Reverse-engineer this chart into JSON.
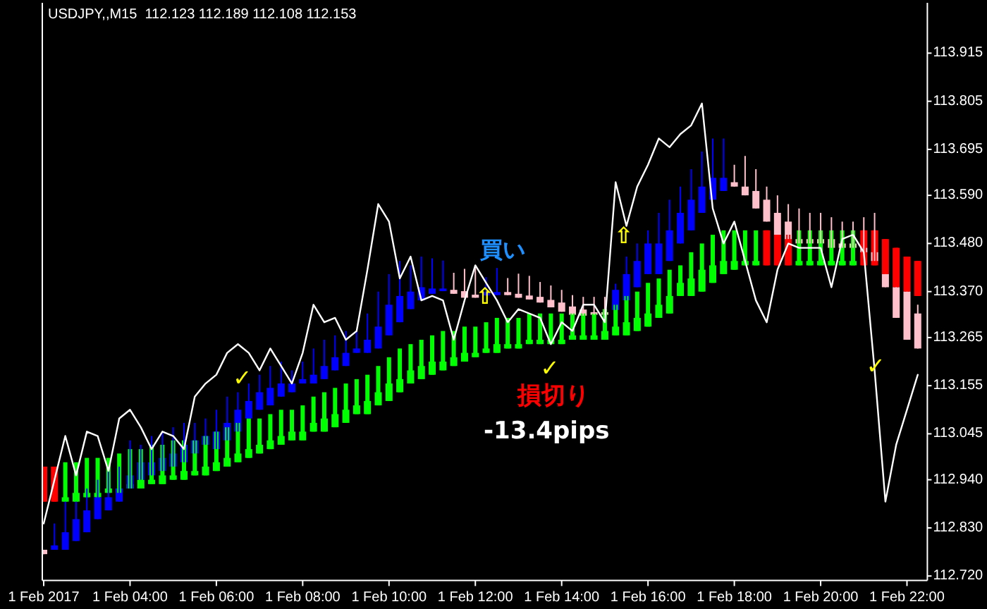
{
  "chart_data": {
    "type": "candlestick",
    "title": "USDJPY,,M15  112.123 112.189 112.108 112.153",
    "categories": [
      "1 Feb 2017",
      null,
      null,
      null,
      null,
      null,
      null,
      null,
      "1 Feb 04:00",
      null,
      null,
      null,
      null,
      null,
      null,
      null,
      "1 Feb 06:00",
      null,
      null,
      null,
      null,
      null,
      null,
      null,
      "1 Feb 08:00",
      null,
      null,
      null,
      null,
      null,
      null,
      null,
      "1 Feb 10:00",
      null,
      null,
      null,
      null,
      null,
      null,
      null,
      "1 Feb 12:00",
      null,
      null,
      null,
      null,
      null,
      null,
      null,
      "1 Feb 14:00",
      null,
      null,
      null,
      null,
      null,
      null,
      null,
      "1 Feb 16:00",
      null,
      null,
      null,
      null,
      null,
      null,
      null,
      "1 Feb 18:00",
      null,
      null,
      null,
      null,
      null,
      null,
      null,
      "1 Feb 20:00",
      null,
      null,
      null,
      null,
      null,
      null,
      null,
      "1 Feb 22:00",
      null
    ],
    "ylim": [
      112.71,
      114.03
    ],
    "yticks": [
      {
        "value": 113.915,
        "label": "113.915"
      },
      {
        "value": 113.805,
        "label": "113.805"
      },
      {
        "value": 113.695,
        "label": "113.695"
      },
      {
        "value": 113.59,
        "label": "113.590"
      },
      {
        "value": 113.48,
        "label": "113.480"
      },
      {
        "value": 113.37,
        "label": "113.370"
      },
      {
        "value": 113.265,
        "label": "113.265"
      },
      {
        "value": 113.155,
        "label": "113.155"
      },
      {
        "value": 113.045,
        "label": "113.045"
      },
      {
        "value": 112.94,
        "label": "112.940"
      },
      {
        "value": 112.83,
        "label": "112.830"
      },
      {
        "value": 112.72,
        "label": "112.720"
      }
    ],
    "series": [
      {
        "type": "candlestick",
        "ohlc": [
          [
            112.78,
            112.78,
            112.77,
            112.77
          ],
          [
            112.79,
            112.84,
            112.78,
            112.78
          ],
          [
            112.82,
            112.89,
            112.78,
            112.78
          ],
          [
            112.85,
            112.89,
            112.8,
            112.8
          ],
          [
            112.87,
            112.92,
            112.82,
            112.82
          ],
          [
            112.9,
            112.94,
            112.85,
            112.85
          ],
          [
            112.9,
            112.96,
            112.87,
            112.87
          ],
          [
            112.92,
            112.97,
            112.89,
            112.89
          ],
          [
            112.95,
            113.03,
            112.92,
            112.92
          ],
          [
            112.98,
            113.02,
            112.94,
            112.94
          ],
          [
            112.98,
            113.04,
            112.95,
            112.95
          ],
          [
            112.99,
            113.05,
            112.96,
            112.96
          ],
          [
            113.0,
            113.06,
            112.97,
            112.97
          ],
          [
            113.02,
            113.07,
            112.98,
            112.98
          ],
          [
            113.03,
            113.07,
            113.0,
            113.0
          ],
          [
            113.04,
            113.08,
            113.02,
            113.02
          ],
          [
            113.05,
            113.1,
            113.01,
            113.01
          ],
          [
            113.07,
            113.13,
            113.03,
            113.03
          ],
          [
            113.1,
            113.14,
            113.05,
            113.05
          ],
          [
            113.12,
            113.16,
            113.08,
            113.08
          ],
          [
            113.14,
            113.18,
            113.1,
            113.1
          ],
          [
            113.15,
            113.2,
            113.11,
            113.11
          ],
          [
            113.16,
            113.21,
            113.13,
            113.13
          ],
          [
            113.16,
            113.19,
            113.14,
            113.14
          ],
          [
            113.17,
            113.21,
            113.16,
            113.16
          ],
          [
            113.18,
            113.24,
            113.16,
            113.16
          ],
          [
            113.2,
            113.26,
            113.17,
            113.17
          ],
          [
            113.22,
            113.27,
            113.19,
            113.19
          ],
          [
            113.23,
            113.28,
            113.2,
            113.2
          ],
          [
            113.24,
            113.28,
            113.23,
            113.23
          ],
          [
            113.26,
            113.32,
            113.23,
            113.23
          ],
          [
            113.29,
            113.37,
            113.24,
            113.24
          ],
          [
            113.34,
            113.41,
            113.27,
            113.27
          ],
          [
            113.36,
            113.44,
            113.3,
            113.3
          ],
          [
            113.37,
            113.43,
            113.33,
            113.33
          ],
          [
            113.38,
            113.45,
            113.35,
            113.35
          ],
          [
            113.377,
            113.446,
            113.365,
            113.365
          ],
          [
            113.377,
            113.441,
            113.371,
            113.371
          ],
          [
            113.374,
            113.413,
            113.365,
            113.365
          ],
          [
            113.371,
            113.422,
            113.356,
            113.356
          ],
          [
            113.363,
            113.424,
            113.356,
            113.356
          ],
          [
            113.369,
            113.403,
            113.361,
            113.361
          ],
          [
            113.369,
            113.424,
            113.362,
            113.362
          ],
          [
            113.369,
            113.401,
            113.362,
            113.362
          ],
          [
            113.365,
            113.411,
            113.356,
            113.356
          ],
          [
            113.361,
            113.406,
            113.352,
            113.352
          ],
          [
            113.358,
            113.392,
            113.345,
            113.345
          ],
          [
            113.351,
            113.384,
            113.334,
            113.334
          ],
          [
            113.345,
            113.374,
            113.324,
            113.324
          ],
          [
            113.336,
            113.362,
            113.317,
            113.317
          ],
          [
            113.329,
            113.358,
            113.315,
            113.315
          ],
          [
            113.323,
            113.358,
            113.317,
            113.317
          ],
          [
            113.323,
            113.358,
            113.317,
            113.317
          ],
          [
            113.374,
            113.388,
            113.328,
            113.328
          ],
          [
            113.41,
            113.45,
            113.35,
            113.35
          ],
          [
            113.44,
            113.48,
            113.38,
            113.38
          ],
          [
            113.48,
            113.51,
            113.41,
            113.41
          ],
          [
            113.48,
            113.55,
            113.41,
            113.41
          ],
          [
            113.51,
            113.58,
            113.44,
            113.44
          ],
          [
            113.55,
            113.61,
            113.48,
            113.48
          ],
          [
            113.58,
            113.65,
            113.51,
            113.51
          ],
          [
            113.61,
            113.69,
            113.55,
            113.55
          ],
          [
            113.63,
            113.72,
            113.58,
            113.58
          ],
          [
            113.63,
            113.72,
            113.6,
            113.6
          ],
          [
            113.62,
            113.66,
            113.61,
            113.61
          ],
          [
            113.61,
            113.68,
            113.59,
            113.59
          ],
          [
            113.6,
            113.65,
            113.56,
            113.56
          ],
          [
            113.58,
            113.61,
            113.53,
            113.53
          ],
          [
            113.55,
            113.59,
            113.5,
            113.5
          ],
          [
            113.53,
            113.57,
            113.49,
            113.49
          ],
          [
            113.49,
            113.56,
            113.48,
            113.48
          ],
          [
            113.49,
            113.55,
            113.48,
            113.48
          ],
          [
            113.49,
            113.55,
            113.48,
            113.48
          ],
          [
            113.49,
            113.54,
            113.47,
            113.47
          ],
          [
            113.48,
            113.53,
            113.47,
            113.47
          ],
          [
            113.48,
            113.53,
            113.47,
            113.47
          ],
          [
            113.47,
            113.54,
            113.46,
            113.46
          ],
          [
            113.46,
            113.55,
            113.44,
            113.44
          ],
          [
            113.41,
            113.41,
            113.38,
            113.38
          ],
          [
            113.38,
            113.38,
            113.31,
            113.31
          ],
          [
            113.37,
            113.37,
            113.26,
            113.26
          ],
          [
            113.32,
            113.34,
            113.24,
            113.24
          ]
        ],
        "colors": [
          "#ffc0cb",
          "#0000ff",
          "#0000ff",
          "#0000ff",
          "#0000ff",
          "#0000ff",
          "#0000ff",
          "#0000ff",
          "#0000ff",
          "#0000ff",
          "#0000ff",
          "#0000ff",
          "#0000ff",
          "#0000ff",
          "#0000ff",
          "#0000ff",
          "#0000ff",
          "#0000ff",
          "#0000ff",
          "#0000ff",
          "#0000ff",
          "#0000ff",
          "#0000ff",
          "#0000ff",
          "#0000ff",
          "#0000ff",
          "#0000ff",
          "#0000ff",
          "#0000ff",
          "#0000ff",
          "#0000ff",
          "#0000ff",
          "#0000ff",
          "#0000ff",
          "#0000ff",
          "#0000ff",
          "#0000ff",
          "#0000ff",
          "#ffc0cb",
          "#ffc0cb",
          "#ffc0cb",
          "#0000ff",
          "#0000ff",
          "#ffc0cb",
          "#ffc0cb",
          "#ffc0cb",
          "#ffc0cb",
          "#ffc0cb",
          "#ffc0cb",
          "#ffc0cb",
          "#ffc0cb",
          "#ffc0cb",
          "#ffc0cb",
          "#0000ff",
          "#0000ff",
          "#0000ff",
          "#0000ff",
          "#0000ff",
          "#0000ff",
          "#0000ff",
          "#0000ff",
          "#0000ff",
          "#0000ff",
          "#0000ff",
          "#ffc0cb",
          "#ffc0cb",
          "#ffc0cb",
          "#ffc0cb",
          "#ffc0cb",
          "#ffc0cb",
          "#ffc0cb",
          "#ffc0cb",
          "#ffc0cb",
          "#ffc0cb",
          "#ffc0cb",
          "#ffc0cb",
          "#ffc0cb",
          "#ffc0cb",
          "#ffc0cb",
          "#ffc0cb",
          "#ffc0cb",
          "#ffc0cb"
        ]
      },
      {
        "type": "candlestick",
        "ohlc": [
          [
            112.97,
            112.97,
            112.89,
            112.89
          ],
          [
            112.97,
            112.97,
            112.89,
            112.89
          ],
          [
            112.9,
            112.98,
            112.89,
            112.89
          ],
          [
            112.91,
            112.98,
            112.89,
            112.89
          ],
          [
            112.91,
            112.99,
            112.9,
            112.9
          ],
          [
            112.91,
            112.99,
            112.9,
            112.9
          ],
          [
            112.92,
            112.99,
            112.91,
            112.91
          ],
          [
            112.92,
            113.0,
            112.91,
            112.91
          ],
          [
            112.93,
            113.01,
            112.92,
            112.92
          ],
          [
            112.94,
            113.01,
            112.92,
            112.92
          ],
          [
            112.94,
            113.02,
            112.93,
            112.93
          ],
          [
            112.95,
            113.02,
            112.93,
            112.93
          ],
          [
            112.95,
            113.03,
            112.94,
            112.94
          ],
          [
            112.96,
            113.03,
            112.94,
            112.94
          ],
          [
            112.96,
            113.03,
            112.95,
            112.95
          ],
          [
            112.97,
            113.04,
            112.95,
            112.95
          ],
          [
            112.98,
            113.05,
            112.96,
            112.96
          ],
          [
            112.99,
            113.06,
            112.97,
            112.97
          ],
          [
            113.0,
            113.07,
            112.98,
            112.98
          ],
          [
            113.01,
            113.08,
            112.99,
            112.99
          ],
          [
            113.02,
            113.08,
            113.0,
            113.0
          ],
          [
            113.03,
            113.09,
            113.01,
            113.01
          ],
          [
            113.04,
            113.1,
            113.02,
            113.02
          ],
          [
            113.05,
            113.1,
            113.03,
            113.03
          ],
          [
            113.05,
            113.11,
            113.03,
            113.03
          ],
          [
            113.07,
            113.13,
            113.05,
            113.05
          ],
          [
            113.08,
            113.14,
            113.05,
            113.05
          ],
          [
            113.09,
            113.15,
            113.06,
            113.06
          ],
          [
            113.1,
            113.16,
            113.07,
            113.07
          ],
          [
            113.11,
            113.17,
            113.09,
            113.09
          ],
          [
            113.12,
            113.18,
            113.09,
            113.09
          ],
          [
            113.14,
            113.2,
            113.11,
            113.11
          ],
          [
            113.16,
            113.22,
            113.12,
            113.12
          ],
          [
            113.17,
            113.24,
            113.14,
            113.14
          ],
          [
            113.19,
            113.25,
            113.16,
            113.16
          ],
          [
            113.2,
            113.26,
            113.17,
            113.17
          ],
          [
            113.21,
            113.27,
            113.18,
            113.18
          ],
          [
            113.21,
            113.28,
            113.19,
            113.19
          ],
          [
            113.22,
            113.28,
            113.2,
            113.2
          ],
          [
            113.23,
            113.29,
            113.21,
            113.21
          ],
          [
            113.23,
            113.29,
            113.22,
            113.22
          ],
          [
            113.24,
            113.3,
            113.23,
            113.23
          ],
          [
            113.25,
            113.31,
            113.23,
            113.23
          ],
          [
            113.25,
            113.31,
            113.24,
            113.24
          ],
          [
            113.25,
            113.31,
            113.24,
            113.24
          ],
          [
            113.26,
            113.32,
            113.25,
            113.25
          ],
          [
            113.26,
            113.32,
            113.25,
            113.25
          ],
          [
            113.26,
            113.32,
            113.25,
            113.25
          ],
          [
            113.26,
            113.32,
            113.25,
            113.25
          ],
          [
            113.27,
            113.32,
            113.26,
            113.26
          ],
          [
            113.27,
            113.32,
            113.26,
            113.26
          ],
          [
            113.27,
            113.32,
            113.26,
            113.26
          ],
          [
            113.28,
            113.33,
            113.26,
            113.26
          ],
          [
            113.29,
            113.34,
            113.27,
            113.27
          ],
          [
            113.3,
            113.36,
            113.27,
            113.27
          ],
          [
            113.31,
            113.37,
            113.28,
            113.28
          ],
          [
            113.32,
            113.39,
            113.29,
            113.29
          ],
          [
            113.34,
            113.4,
            113.31,
            113.31
          ],
          [
            113.36,
            113.42,
            113.32,
            113.32
          ],
          [
            113.39,
            113.43,
            113.36,
            113.36
          ],
          [
            113.4,
            113.46,
            113.36,
            113.36
          ],
          [
            113.42,
            113.48,
            113.37,
            113.37
          ],
          [
            113.43,
            113.5,
            113.39,
            113.39
          ],
          [
            113.44,
            113.51,
            113.41,
            113.41
          ],
          [
            113.44,
            113.51,
            113.42,
            113.42
          ],
          [
            113.44,
            113.51,
            113.43,
            113.43
          ],
          [
            113.44,
            113.51,
            113.43,
            113.43
          ],
          [
            113.51,
            113.51,
            113.43,
            113.43
          ],
          [
            113.5,
            113.5,
            113.43,
            113.43
          ],
          [
            113.5,
            113.5,
            113.43,
            113.43
          ],
          [
            113.44,
            113.51,
            113.43,
            113.43
          ],
          [
            113.44,
            113.51,
            113.43,
            113.43
          ],
          [
            113.44,
            113.51,
            113.43,
            113.43
          ],
          [
            113.44,
            113.51,
            113.43,
            113.43
          ],
          [
            113.44,
            113.51,
            113.43,
            113.43
          ],
          [
            113.44,
            113.51,
            113.43,
            113.43
          ],
          [
            113.51,
            113.51,
            113.43,
            113.43
          ],
          [
            113.51,
            113.51,
            113.43,
            113.43
          ],
          [
            113.49,
            113.49,
            113.41,
            113.41
          ],
          [
            113.47,
            113.47,
            113.38,
            113.38
          ],
          [
            113.45,
            113.45,
            113.37,
            113.37
          ],
          [
            113.44,
            113.44,
            113.36,
            113.36
          ]
        ],
        "colors": [
          "#ff0000",
          "#ff0000",
          "#00ff00",
          "#00ff00",
          "#00ff00",
          "#00ff00",
          "#00ff00",
          "#00ff00",
          "#00ff00",
          "#00ff00",
          "#00ff00",
          "#00ff00",
          "#00ff00",
          "#00ff00",
          "#00ff00",
          "#00ff00",
          "#00ff00",
          "#00ff00",
          "#00ff00",
          "#00ff00",
          "#00ff00",
          "#00ff00",
          "#00ff00",
          "#00ff00",
          "#00ff00",
          "#00ff00",
          "#00ff00",
          "#00ff00",
          "#00ff00",
          "#00ff00",
          "#00ff00",
          "#00ff00",
          "#00ff00",
          "#00ff00",
          "#00ff00",
          "#00ff00",
          "#00ff00",
          "#00ff00",
          "#00ff00",
          "#00ff00",
          "#00ff00",
          "#00ff00",
          "#00ff00",
          "#00ff00",
          "#00ff00",
          "#00ff00",
          "#00ff00",
          "#00ff00",
          "#00ff00",
          "#00ff00",
          "#00ff00",
          "#00ff00",
          "#00ff00",
          "#00ff00",
          "#00ff00",
          "#00ff00",
          "#00ff00",
          "#00ff00",
          "#00ff00",
          "#00ff00",
          "#00ff00",
          "#00ff00",
          "#00ff00",
          "#00ff00",
          "#00ff00",
          "#00ff00",
          "#00ff00",
          "#ff0000",
          "#ff0000",
          "#ff0000",
          "#00ff00",
          "#00ff00",
          "#00ff00",
          "#00ff00",
          "#00ff00",
          "#00ff00",
          "#ff0000",
          "#ff0000",
          "#ff0000",
          "#ff0000",
          "#ff0000",
          "#ff0000"
        ]
      },
      {
        "type": "line",
        "color": "#ffffff",
        "values": [
          112.84,
          112.94,
          113.04,
          112.95,
          113.05,
          113.04,
          112.96,
          113.08,
          113.1,
          113.06,
          113.01,
          113.05,
          113.04,
          113.01,
          113.13,
          113.16,
          113.18,
          113.23,
          113.25,
          113.23,
          113.19,
          113.24,
          113.2,
          113.16,
          113.23,
          113.34,
          113.3,
          113.31,
          113.26,
          113.28,
          113.42,
          113.57,
          113.53,
          113.4,
          113.45,
          113.35,
          113.36,
          113.35,
          113.26,
          113.35,
          113.43,
          113.39,
          113.35,
          113.3,
          113.33,
          113.32,
          113.31,
          113.25,
          113.3,
          113.28,
          113.34,
          113.34,
          113.3,
          113.62,
          113.52,
          113.61,
          113.66,
          113.72,
          113.7,
          113.73,
          113.75,
          113.8,
          113.56,
          113.48,
          113.53,
          113.44,
          113.35,
          113.3,
          113.42,
          113.48,
          113.47,
          113.47,
          113.47,
          113.38,
          113.49,
          113.5,
          113.46,
          113.19,
          112.89,
          113.02,
          113.1,
          113.18
        ]
      }
    ],
    "annotations": [
      "買い",
      "損切り",
      "-13.4pips",
      "✓",
      "✓",
      {
        "text": "✓",
        "y": 113.2
      },
      {
        "text": "⇧",
        "y": 113.36
      },
      "⇧"
    ]
  }
}
